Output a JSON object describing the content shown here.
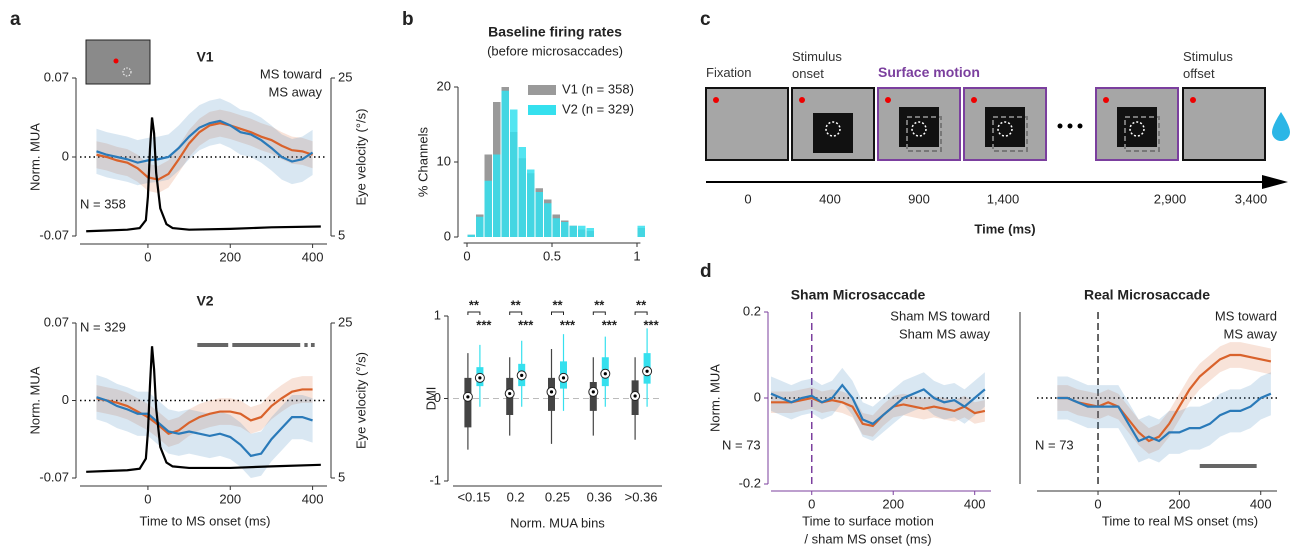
{
  "panel_labels": [
    "a",
    "b",
    "c",
    "d"
  ],
  "chart_data": [
    {
      "type": "line",
      "title": "V1",
      "ylabel": "Norm. MUA",
      "y2label": "Eye velocity (°/s)",
      "annotation": "N = 358",
      "xlim": [
        -165,
        435
      ],
      "xticks": [
        0,
        200,
        400
      ],
      "ylim": [
        -0.07,
        0.07
      ],
      "yticks": [
        -0.07,
        0,
        0.07
      ],
      "y2lim": [
        5,
        25
      ],
      "y2ticks": [
        5,
        25
      ],
      "ref_line": 0,
      "x": [
        -125,
        -100,
        -75,
        -50,
        -25,
        0,
        25,
        50,
        75,
        100,
        125,
        150,
        175,
        200,
        225,
        250,
        275,
        300,
        325,
        350,
        375,
        400
      ],
      "series": [
        {
          "name": "MS toward",
          "color": "#d9622b",
          "values": [
            0.002,
            0.0,
            -0.003,
            -0.005,
            -0.01,
            -0.018,
            -0.02,
            -0.015,
            -0.002,
            0.012,
            0.022,
            0.028,
            0.03,
            0.028,
            0.025,
            0.022,
            0.018,
            0.015,
            0.01,
            0.006,
            0.005,
            0.002
          ],
          "errors": [
            0.012,
            0.012,
            0.012,
            0.012,
            0.012,
            0.012,
            0.012,
            0.012,
            0.012,
            0.012,
            0.012,
            0.012,
            0.012,
            0.012,
            0.012,
            0.012,
            0.012,
            0.012,
            0.012,
            0.012,
            0.012,
            0.012
          ]
        },
        {
          "name": "MS away",
          "color": "#2a7ab9",
          "values": [
            0.005,
            0.002,
            0.0,
            -0.002,
            -0.005,
            -0.003,
            -0.002,
            0.0,
            0.008,
            0.018,
            0.026,
            0.03,
            0.032,
            0.028,
            0.022,
            0.02,
            0.015,
            0.008,
            0.0,
            -0.004,
            -0.002,
            0.004
          ],
          "errors": [
            0.02,
            0.02,
            0.02,
            0.02,
            0.02,
            0.02,
            0.02,
            0.02,
            0.02,
            0.02,
            0.02,
            0.02,
            0.02,
            0.02,
            0.02,
            0.02,
            0.02,
            0.02,
            0.02,
            0.02,
            0.02,
            0.02
          ]
        },
        {
          "color": "#000000",
          "axis": "y2",
          "x": [
            -150,
            -100,
            -50,
            -20,
            -5,
            0,
            5,
            10,
            15,
            20,
            30,
            45,
            60,
            100,
            200,
            300,
            420
          ],
          "values": [
            5.6,
            5.7,
            5.8,
            6.0,
            7,
            10,
            16,
            20,
            18,
            13,
            8.5,
            6.5,
            6,
            5.8,
            5.9,
            6.1,
            6.2
          ]
        }
      ]
    },
    {
      "type": "line",
      "title": "V2",
      "ylabel": "Norm. MUA",
      "y2label": "Eye velocity (°/s)",
      "xlabel": "Time to MS onset (ms)",
      "annotation": "N = 329",
      "xlim": [
        -165,
        435
      ],
      "xticks": [
        0,
        200,
        400
      ],
      "ylim": [
        -0.07,
        0.07
      ],
      "yticks": [
        -0.07,
        0,
        0.07
      ],
      "y2lim": [
        5,
        25
      ],
      "y2ticks": [
        5,
        25
      ],
      "ref_line": 0,
      "sig_bars": [
        [
          120,
          195
        ],
        [
          205,
          370
        ],
        [
          380,
          388
        ],
        [
          396,
          405
        ]
      ],
      "x": [
        -125,
        -100,
        -75,
        -50,
        -25,
        0,
        25,
        50,
        75,
        100,
        125,
        150,
        175,
        200,
        225,
        250,
        275,
        300,
        325,
        350,
        375,
        400
      ],
      "series": [
        {
          "color": "#d9622b",
          "values": [
            0.002,
            0.0,
            -0.002,
            -0.005,
            -0.01,
            -0.015,
            -0.022,
            -0.03,
            -0.027,
            -0.02,
            -0.015,
            -0.012,
            -0.01,
            -0.01,
            -0.012,
            -0.018,
            -0.015,
            -0.005,
            0.002,
            0.008,
            0.01,
            0.01
          ],
          "errors": [
            0.012,
            0.012,
            0.012,
            0.012,
            0.012,
            0.012,
            0.012,
            0.012,
            0.012,
            0.012,
            0.012,
            0.012,
            0.012,
            0.012,
            0.012,
            0.012,
            0.012,
            0.012,
            0.012,
            0.012,
            0.012,
            0.012
          ]
        },
        {
          "color": "#2a7ab9",
          "values": [
            0.003,
            0.0,
            -0.005,
            -0.008,
            -0.012,
            -0.012,
            -0.02,
            -0.028,
            -0.03,
            -0.028,
            -0.03,
            -0.032,
            -0.03,
            -0.033,
            -0.04,
            -0.05,
            -0.048,
            -0.035,
            -0.025,
            -0.015,
            -0.015,
            -0.018
          ],
          "errors": [
            0.02,
            0.02,
            0.02,
            0.02,
            0.02,
            0.02,
            0.02,
            0.02,
            0.02,
            0.02,
            0.02,
            0.02,
            0.02,
            0.02,
            0.02,
            0.02,
            0.02,
            0.02,
            0.02,
            0.02,
            0.02,
            0.02
          ]
        },
        {
          "color": "#000000",
          "axis": "y2",
          "x": [
            -150,
            -100,
            -50,
            -20,
            -5,
            0,
            5,
            10,
            15,
            20,
            30,
            45,
            60,
            100,
            200,
            300,
            420
          ],
          "values": [
            5.8,
            5.9,
            6,
            6.2,
            7.5,
            11,
            17,
            22,
            19,
            14,
            9,
            7,
            6.5,
            6.3,
            6.3,
            6.5,
            6.7
          ]
        }
      ]
    },
    {
      "type": "histogram",
      "title": "Baseline firing rates",
      "subtitle": "(before microsaccades)",
      "ylabel": "% Channels",
      "xlim": [
        -0.02,
        1.02
      ],
      "xticks": [
        0,
        0.5,
        1
      ],
      "ylim": [
        0,
        20
      ],
      "yticks": [
        0,
        10,
        20
      ],
      "bins": [
        0,
        0.05,
        0.1,
        0.15,
        0.2,
        0.25,
        0.3,
        0.35,
        0.4,
        0.45,
        0.5,
        0.55,
        0.6,
        0.65,
        0.7,
        0.75,
        0.8,
        0.85,
        0.9,
        0.95,
        1.0,
        1.05
      ],
      "series": [
        {
          "name": "V1 (n = 358)",
          "color": "#9a9a9a",
          "values": [
            0.3,
            3,
            11,
            18,
            20,
            14,
            10.5,
            8.5,
            6.5,
            5,
            3,
            2.2,
            1.5,
            1,
            0.8,
            0,
            0,
            0,
            0,
            0,
            1.2
          ]
        },
        {
          "name": "V2 (n = 329)",
          "color": "#35e0ee",
          "values": [
            0.3,
            2.7,
            7.5,
            11,
            19.5,
            17,
            12,
            9,
            6,
            4.5,
            2.5,
            2,
            1.5,
            1.5,
            1.2,
            0,
            0,
            0,
            0,
            0,
            1.5
          ]
        }
      ]
    },
    {
      "type": "box",
      "ylabel": "DMI",
      "xlabel": "Norm. MUA bins",
      "categories": [
        "<0.15",
        "0.2",
        "0.25",
        "0.36",
        ">0.36"
      ],
      "ylim": [
        -1,
        1
      ],
      "yticks": [
        -1,
        0,
        1
      ],
      "ref_line": 0,
      "pair_stars": [
        "**",
        "**",
        "**",
        "**",
        "**"
      ],
      "v2_stars": [
        "***",
        "***",
        "***",
        "***",
        "***"
      ],
      "series": [
        {
          "color": "#444444",
          "low": [
            -0.62,
            -0.45,
            -0.55,
            -0.45,
            -0.5
          ],
          "q1": [
            -0.35,
            -0.2,
            -0.15,
            -0.15,
            -0.2
          ],
          "median": [
            0.02,
            0.06,
            0.08,
            0.08,
            0.03
          ],
          "q3": [
            0.25,
            0.25,
            0.25,
            0.2,
            0.22
          ],
          "high": [
            0.55,
            0.5,
            0.6,
            0.5,
            0.5
          ]
        },
        {
          "color": "#35e0ee",
          "low": [
            -0.1,
            -0.1,
            -0.15,
            -0.1,
            -0.1
          ],
          "q1": [
            0.15,
            0.15,
            0.12,
            0.15,
            0.18
          ],
          "median": [
            0.25,
            0.28,
            0.25,
            0.3,
            0.33
          ],
          "q3": [
            0.38,
            0.42,
            0.45,
            0.5,
            0.55
          ],
          "high": [
            0.65,
            0.7,
            0.78,
            0.75,
            0.85
          ]
        }
      ]
    },
    {
      "type": "line",
      "title": "Sham Microsaccade",
      "title_color": "#7b3f9e",
      "axis_color": "#7b3f9e",
      "ylabel": "Norm. MUA",
      "xlabel": [
        "Time to surface motion",
        "/ sham MS onset (ms)"
      ],
      "annotation": "N = 73",
      "xlim": [
        -100,
        440
      ],
      "xticks": [
        0,
        200,
        400
      ],
      "ylim": [
        -0.2,
        0.2
      ],
      "yticks": [
        -0.2,
        0,
        0.2
      ],
      "ref_line": 0,
      "vline": 0,
      "x": [
        -100,
        -75,
        -50,
        -25,
        0,
        25,
        50,
        75,
        100,
        125,
        150,
        175,
        200,
        225,
        250,
        275,
        300,
        325,
        350,
        375,
        400,
        425
      ],
      "series": [
        {
          "name": "Sham MS toward",
          "color": "#d9622b",
          "values": [
            -0.01,
            -0.01,
            -0.01,
            -0.005,
            0,
            -0.01,
            -0.005,
            -0.01,
            -0.02,
            -0.06,
            -0.065,
            -0.04,
            -0.02,
            -0.015,
            -0.02,
            -0.025,
            -0.02,
            -0.025,
            -0.03,
            -0.02,
            -0.035,
            -0.03
          ],
          "errors": [
            0.025,
            0.025,
            0.025,
            0.025,
            0.025,
            0.025,
            0.025,
            0.025,
            0.025,
            0.025,
            0.025,
            0.025,
            0.025,
            0.025,
            0.025,
            0.025,
            0.025,
            0.025,
            0.025,
            0.025,
            0.025,
            0.025
          ]
        },
        {
          "name": "Sham MS away",
          "color": "#2a7ab9",
          "values": [
            0.01,
            0.0,
            -0.01,
            0.0,
            0.005,
            -0.01,
            0.0,
            0.03,
            0.0,
            -0.05,
            -0.06,
            -0.04,
            -0.02,
            0.0,
            0.01,
            0.02,
            0.0,
            -0.01,
            -0.005,
            -0.02,
            0.0,
            0.02
          ],
          "errors": [
            0.04,
            0.04,
            0.04,
            0.04,
            0.04,
            0.04,
            0.04,
            0.04,
            0.04,
            0.04,
            0.04,
            0.04,
            0.04,
            0.04,
            0.04,
            0.04,
            0.04,
            0.04,
            0.04,
            0.04,
            0.04,
            0.04
          ]
        }
      ]
    },
    {
      "type": "line",
      "title": "Real Microsaccade",
      "xlabel": "Time to real MS onset (ms)",
      "annotation": "N = 73",
      "xlim": [
        -150,
        440
      ],
      "xticks": [
        0,
        200,
        400
      ],
      "ylim": [
        -0.2,
        0.2
      ],
      "ref_line": 0,
      "vline": 0,
      "sig_bars": [
        [
          250,
          390
        ]
      ],
      "x": [
        -100,
        -75,
        -50,
        -25,
        0,
        25,
        50,
        75,
        100,
        125,
        150,
        175,
        200,
        225,
        250,
        275,
        300,
        325,
        350,
        375,
        400,
        425
      ],
      "series": [
        {
          "name": "MS toward",
          "color": "#d9622b",
          "values": [
            0.0,
            0.0,
            -0.01,
            -0.015,
            -0.02,
            -0.01,
            -0.02,
            -0.05,
            -0.08,
            -0.1,
            -0.09,
            -0.06,
            -0.02,
            0.02,
            0.05,
            0.07,
            0.09,
            0.1,
            0.1,
            0.095,
            0.09,
            0.085
          ],
          "errors": [
            0.03,
            0.03,
            0.03,
            0.03,
            0.03,
            0.03,
            0.03,
            0.03,
            0.03,
            0.03,
            0.03,
            0.03,
            0.03,
            0.03,
            0.03,
            0.03,
            0.03,
            0.03,
            0.03,
            0.03,
            0.03,
            0.03
          ]
        },
        {
          "name": "MS away",
          "color": "#2a7ab9",
          "values": [
            0.0,
            0.0,
            -0.01,
            -0.02,
            -0.02,
            -0.02,
            -0.02,
            -0.06,
            -0.1,
            -0.09,
            -0.1,
            -0.08,
            -0.08,
            -0.07,
            -0.07,
            -0.06,
            -0.04,
            -0.03,
            -0.03,
            -0.02,
            0.0,
            0.01
          ],
          "errors": [
            0.05,
            0.05,
            0.05,
            0.05,
            0.05,
            0.05,
            0.05,
            0.05,
            0.05,
            0.05,
            0.05,
            0.05,
            0.05,
            0.05,
            0.05,
            0.05,
            0.05,
            0.05,
            0.05,
            0.05,
            0.05,
            0.05
          ]
        }
      ]
    }
  ],
  "diagram": {
    "frame_labels": [
      "Fixation",
      "Stimulus onset",
      "Surface motion",
      "Stimulus offset"
    ],
    "times": [
      "0",
      "400",
      "900",
      "1,400",
      "2,900",
      "3,400"
    ],
    "axis_label": "Time (ms)"
  }
}
